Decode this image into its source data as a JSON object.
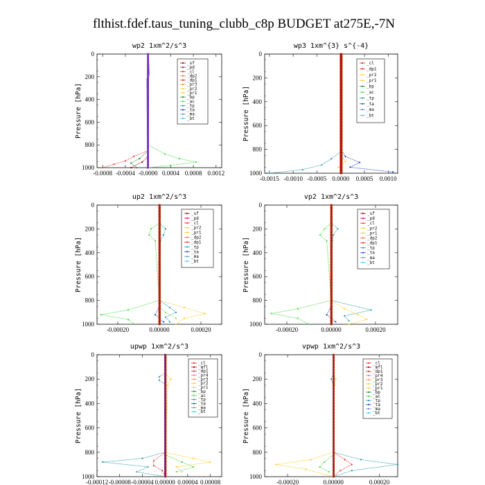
{
  "title": "flthist.fdef.taus_tuning_clubb_c8p  BUDGET at275E,-7N",
  "chart_data": [
    {
      "type": "line",
      "title": "wp2  1xm^2/s^3",
      "ylabel": "Pressure [hPa]",
      "xlim": [
        -0.0009,
        0.0013
      ],
      "ylim": [
        1000,
        0
      ],
      "xticks": [
        "-0.0008",
        "-0.0004",
        "-0.0000",
        "0.0004",
        "0.0008",
        "0.0012"
      ],
      "xtick_vals": [
        -0.0008,
        -0.0004,
        0,
        0.0004,
        0.0008,
        0.0012
      ],
      "yticks": [
        "0",
        "200",
        "400",
        "600",
        "800",
        "1000"
      ],
      "legend_position": "top-right",
      "legend": [
        "_sf",
        "_pd",
        "_cl",
        "_dp2",
        "_dp1",
        "_pr3",
        "_pr2",
        "_pr1",
        "_bp",
        "_ac",
        "_tp",
        "_ta",
        "_ma",
        "_bt"
      ],
      "series": [
        {
          "name": "_pr1",
          "color": "#44dd44",
          "p": [
            800,
            880,
            920,
            950,
            980,
            1000
          ],
          "v": [
            0,
            0.0003,
            0.00055,
            0.00085,
            0.0004,
            0
          ]
        },
        {
          "name": "_pr2",
          "color": "#ff3333",
          "p": [
            850,
            900,
            940,
            970,
            1000
          ],
          "v": [
            0,
            -0.00025,
            -0.0004,
            -0.0006,
            -0.0008
          ]
        },
        {
          "name": "_bp",
          "color": "#228844",
          "p": [
            850,
            920,
            960,
            1000
          ],
          "v": [
            0,
            -0.00015,
            -0.0003,
            -0.0002
          ]
        },
        {
          "name": "_sf",
          "color": "#aa0000",
          "p": [
            900,
            950,
            1000
          ],
          "v": [
            0,
            -0.0001,
            -0.0003
          ]
        },
        {
          "name": "_pd",
          "color": "#cc0066",
          "p": [
            0,
            200,
            1000
          ],
          "v": [
            0,
            0,
            0
          ]
        },
        {
          "name": "_ma",
          "color": "#222266",
          "p": [
            0,
            1000
          ],
          "v": [
            0,
            0
          ]
        },
        {
          "name": "_bt",
          "color": "#7733cc",
          "p": [
            0,
            180,
            220,
            1000
          ],
          "v": [
            0,
            1e-05,
            -1e-05,
            0
          ]
        }
      ]
    },
    {
      "type": "line",
      "title": "wp3  1xm^{3} s^{-4}",
      "ylabel": "Pressure [hPa]",
      "xlim": [
        -0.0016,
        0.0012
      ],
      "ylim": [
        1000,
        0
      ],
      "xticks": [
        "-0.0015",
        "-0.0010",
        "-0.0005",
        "0.0000",
        "0.0005",
        "0.0010"
      ],
      "xtick_vals": [
        -0.0015,
        -0.001,
        -0.0005,
        0,
        0.0005,
        0.001
      ],
      "yticks": [
        "0",
        "200",
        "400",
        "600",
        "800",
        "1000"
      ],
      "legend_position": "top-right",
      "legend": [
        "_cl",
        "_dp1",
        "_pr2",
        "_pr1",
        "_bp",
        "_ac",
        "_tp",
        "_ta",
        "_ma",
        "_bt"
      ],
      "series": [
        {
          "name": "_ta",
          "color": "#2244cc",
          "p": [
            800,
            860,
            910,
            950,
            990
          ],
          "v": [
            0,
            0.0001,
            0.0004,
            0.0002,
            0.0011
          ]
        },
        {
          "name": "_tp",
          "color": "#2299aa",
          "p": [
            820,
            880,
            930,
            970,
            1000
          ],
          "v": [
            0,
            -0.0002,
            -0.0004,
            -0.0008,
            -0.0015
          ]
        },
        {
          "name": "_pr1",
          "color": "#ffcc22",
          "p": [
            850,
            900,
            950
          ],
          "v": [
            0,
            0.0001,
            -5e-05
          ]
        },
        {
          "name": "_cl",
          "color": "#cc0000",
          "p": [
            0,
            1000
          ],
          "v": [
            0,
            0
          ]
        },
        {
          "name": "_bt",
          "color": "#aa2200",
          "p": [
            0,
            1000
          ],
          "v": [
            2e-05,
            2e-05
          ]
        }
      ]
    },
    {
      "type": "line",
      "title": "up2  1xm^2/s^3",
      "ylabel": "Pressure [hPa]",
      "xlim": [
        -0.0003,
        0.0003
      ],
      "ylim": [
        1000,
        0
      ],
      "xticks": [
        "-0.00020",
        "0.00000",
        "0.00020"
      ],
      "xtick_vals": [
        -0.0002,
        0,
        0.0002
      ],
      "yticks": [
        "0",
        "200",
        "400",
        "600",
        "800",
        "1000"
      ],
      "legend_position": "top-right",
      "legend": [
        "_sf",
        "_pd",
        "_cl",
        "_pr2",
        "_pr1",
        "_dp2",
        "_dp1",
        "_tp",
        "_ta",
        "_ma",
        "_bt"
      ],
      "series": [
        {
          "name": "_pr1",
          "color": "#44dd44",
          "p": [
            150,
            200,
            250,
            300,
            800,
            880,
            920,
            960,
            1000
          ],
          "v": [
            0,
            -4e-05,
            -5e-05,
            -2e-05,
            0,
            -0.00015,
            -0.00028,
            -0.00015,
            -0.00012
          ]
        },
        {
          "name": "_tp",
          "color": "#2299aa",
          "p": [
            150,
            200,
            250,
            300,
            800,
            860,
            900,
            940,
            980
          ],
          "v": [
            0,
            3e-05,
            2e-05,
            5e-06,
            0,
            5e-05,
            8e-05,
            3e-05,
            5e-05
          ]
        },
        {
          "name": "_pr2",
          "color": "#ffcc22",
          "p": [
            800,
            860,
            910,
            950,
            1000
          ],
          "v": [
            0,
            0.00012,
            0.00022,
            0.00012,
            8e-05
          ]
        },
        {
          "name": "_dp2",
          "color": "#88dd44",
          "p": [
            850,
            900,
            950
          ],
          "v": [
            0,
            3e-05,
            8e-05
          ]
        },
        {
          "name": "_ta",
          "color": "#2244cc",
          "p": [
            850,
            920,
            980
          ],
          "v": [
            0,
            -2e-05,
            2e-05
          ]
        },
        {
          "name": "_cl",
          "color": "#cc0000",
          "p": [
            0,
            1000
          ],
          "v": [
            0,
            0
          ]
        },
        {
          "name": "_bt",
          "color": "#aa2200",
          "p": [
            0,
            1000
          ],
          "v": [
            2e-06,
            2e-06
          ]
        }
      ]
    },
    {
      "type": "line",
      "title": "vp2  1xm^2/s^3",
      "ylabel": "Pressure [hPa]",
      "xlim": [
        -0.0003,
        0.0003
      ],
      "ylim": [
        1000,
        0
      ],
      "xticks": [
        "-0.00020",
        "0.00000",
        "0.00020"
      ],
      "xtick_vals": [
        -0.0002,
        0,
        0.0002
      ],
      "yticks": [
        "0",
        "200",
        "400",
        "600",
        "800",
        "1000"
      ],
      "legend_position": "top-right",
      "legend": [
        "_sf",
        "_pd",
        "_cl",
        "_pr2",
        "_pr1",
        "_dp2",
        "_dp1",
        "_tp",
        "_ta",
        "_ma",
        "_bt"
      ],
      "series": [
        {
          "name": "_pr1",
          "color": "#44dd44",
          "p": [
            150,
            200,
            250,
            300,
            800,
            870,
            910,
            950,
            1000
          ],
          "v": [
            0,
            -3e-05,
            -5e-05,
            -2e-05,
            0,
            -0.00015,
            -0.00027,
            -0.00015,
            -0.0001
          ]
        },
        {
          "name": "_tp",
          "color": "#2299aa",
          "p": [
            150,
            200,
            250,
            300,
            800,
            880,
            930,
            970
          ],
          "v": [
            0,
            3e-05,
            1e-05,
            5e-06,
            0,
            0.00018,
            6e-05,
            8e-05
          ]
        },
        {
          "name": "_pr2",
          "color": "#ffcc22",
          "p": [
            800,
            870,
            920,
            960,
            1000
          ],
          "v": [
            0,
            6e-05,
            0.00012,
            0.00016,
            8e-05
          ]
        },
        {
          "name": "_ta",
          "color": "#2244cc",
          "p": [
            850,
            920,
            980
          ],
          "v": [
            0,
            -2e-05,
            2e-05
          ]
        },
        {
          "name": "_cl",
          "color": "#cc0000",
          "p": [
            0,
            1000
          ],
          "v": [
            0,
            0
          ]
        },
        {
          "name": "_bt",
          "color": "#aa2200",
          "p": [
            0,
            1000
          ],
          "v": [
            2e-06,
            2e-06
          ]
        }
      ]
    },
    {
      "type": "line",
      "title": "upwp  1xm^2/s^3",
      "ylabel": "Pressure [hPa]",
      "xlim": [
        -0.00012,
        0.0001
      ],
      "ylim": [
        1000,
        0
      ],
      "xticks": [
        "-0.00012",
        "-0.00008",
        "-0.00004",
        "0.00000",
        "0.00004",
        "0.00008"
      ],
      "xtick_vals": [
        -0.00012,
        -8e-05,
        -4e-05,
        0,
        4e-05,
        8e-05
      ],
      "yticks": [
        "0",
        "200",
        "400",
        "600",
        "800",
        "1000"
      ],
      "legend_position": "top-right",
      "legend": [
        "_cl",
        "_mfl",
        "_dp1",
        "_pr4",
        "_pr3",
        "_pr2",
        "_pr1",
        "_bp",
        "_ac",
        "_tp",
        "_ta",
        "_ma",
        "_bt"
      ],
      "series": [
        {
          "name": "_tp",
          "color": "#2299aa",
          "p": [
            150,
            180,
            210,
            240,
            800,
            850,
            880,
            920,
            960,
            1000
          ],
          "v": [
            0,
            -1e-05,
            -1e-05,
            0,
            0,
            -4e-05,
            -0.00011,
            -3e-05,
            -5e-05,
            0
          ]
        },
        {
          "name": "_pr1",
          "color": "#ffcc22",
          "p": [
            150,
            200,
            250,
            800,
            850,
            880,
            920,
            960
          ],
          "v": [
            0,
            1e-05,
            5e-06,
            0,
            5e-05,
            8e-05,
            2e-05,
            3e-05
          ]
        },
        {
          "name": "_pr2",
          "color": "#ff3333",
          "p": [
            800,
            870,
            910,
            950,
            1000
          ],
          "v": [
            0,
            -2e-05,
            -2e-05,
            -5e-06,
            0
          ]
        },
        {
          "name": "_bp",
          "color": "#44dd44",
          "p": [
            820,
            880,
            920,
            960
          ],
          "v": [
            0,
            3e-05,
            5e-05,
            2e-05
          ]
        },
        {
          "name": "_cl",
          "color": "#7733cc",
          "p": [
            0,
            1000
          ],
          "v": [
            0,
            0
          ]
        },
        {
          "name": "_mfl",
          "color": "#aa2200",
          "p": [
            0,
            1000
          ],
          "v": [
            1e-06,
            1e-06
          ]
        }
      ]
    },
    {
      "type": "line",
      "title": "vpwp  1xm^2/s^3",
      "ylabel": "Pressure [hPa]",
      "xlim": [
        -0.0003,
        0.00028
      ],
      "ylim": [
        1000,
        0
      ],
      "xticks": [
        "-0.00020",
        "0.00000",
        "0.00020"
      ],
      "xtick_vals": [
        -0.0002,
        0,
        0.0002
      ],
      "yticks": [
        "0",
        "200",
        "400",
        "600",
        "800",
        "1000"
      ],
      "legend_position": "top-right",
      "legend": [
        "_cl",
        "_mfl",
        "_dp1",
        "_pr4",
        "_pr3",
        "_pr2",
        "_pr1",
        "_bp",
        "_ac",
        "_tp",
        "_ta",
        "_ma",
        "_bt"
      ],
      "series": [
        {
          "name": "_pr1",
          "color": "#ffcc22",
          "p": [
            150,
            200,
            250,
            300,
            800,
            860,
            900,
            940,
            1000
          ],
          "v": [
            0,
            1e-05,
            5e-06,
            0,
            0,
            -0.0001,
            -0.00025,
            -0.00012,
            0
          ]
        },
        {
          "name": "_tp",
          "color": "#2299aa",
          "p": [
            150,
            200,
            250,
            800,
            860,
            900,
            950,
            1000
          ],
          "v": [
            0,
            -1e-05,
            0,
            0,
            0.00012,
            0.00028,
            8e-05,
            0
          ]
        },
        {
          "name": "_pr2",
          "color": "#ff3333",
          "p": [
            800,
            860,
            900,
            950,
            1000
          ],
          "v": [
            0,
            5e-05,
            8e-05,
            3e-05,
            0
          ]
        },
        {
          "name": "_bp",
          "color": "#44dd44",
          "p": [
            820,
            880,
            920,
            960
          ],
          "v": [
            0,
            -4e-05,
            -6e-05,
            -2e-05
          ]
        },
        {
          "name": "_cl",
          "color": "#7733cc",
          "p": [
            0,
            1000
          ],
          "v": [
            0,
            0
          ]
        },
        {
          "name": "_mfl",
          "color": "#aa2200",
          "p": [
            0,
            1000
          ],
          "v": [
            1e-06,
            1e-06
          ]
        }
      ]
    }
  ],
  "legend_colors": {
    "_sf": "#aa0000",
    "_pd": "#cc0066",
    "_cl": "#ff2222",
    "_mfl": "#990000",
    "_dp2": "#ff6633",
    "_dp1": "#ee2222",
    "_pr4": "#ff66aa",
    "_pr3": "#ff9900",
    "_pr2": "#ffcc22",
    "_pr1": "#ffcc22",
    "_bp": "#228833",
    "_ac": "#44dd44",
    "_tp": "#2299aa",
    "_ta": "#2244cc",
    "_ma": "#6688cc",
    "_bt": "#33ccee"
  }
}
